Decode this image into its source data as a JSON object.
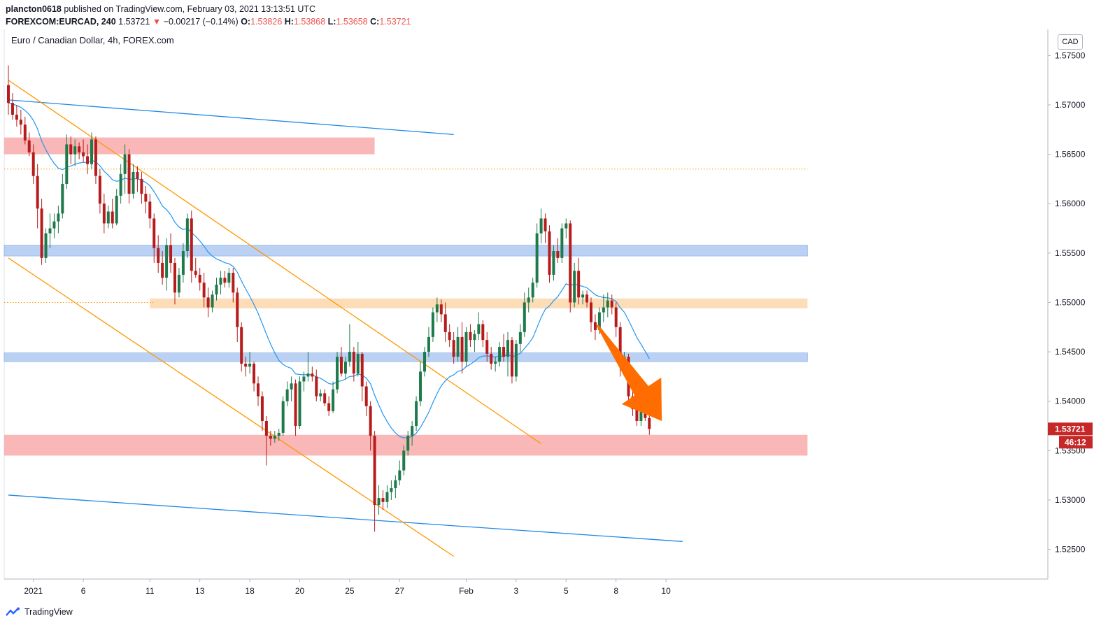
{
  "header": {
    "publisher": "plancton0618",
    "published_text": "published on TradingView.com, February 03, 2021 13:13:51 UTC",
    "symbol": "FOREXCOM:EURCAD, 240",
    "last": "1.53721",
    "change": "−0.00217 (−0.14%)",
    "o_label": "O:",
    "o_val": "1.53826",
    "h_label": "H:",
    "h_val": "1.53868",
    "l_label": "L:",
    "l_val": "1.53658",
    "c_label": "C:",
    "c_val": "1.53721"
  },
  "symbol_title": "Euro / Canadian Dollar, 4h, FOREX.com",
  "currency_label": "CAD",
  "price_label": "1.53721",
  "countdown_label": "46:12",
  "footer": {
    "brand": "TradingView"
  },
  "colors": {
    "up": "#26a69a",
    "down": "#ef5350",
    "candle_up": "#1e7a4a",
    "candle_down": "#b71c1c",
    "ma": "#2196f3",
    "channel_orange": "#ff9800",
    "trend_blue": "#1e88e5",
    "zone_red": "#f8a5a5",
    "zone_blue": "#a9c6f0",
    "zone_orange": "#fcd3a6",
    "arrow": "#ff6d00"
  },
  "chart_data": {
    "type": "candlestick",
    "title": "Euro / Canadian Dollar, 4h, FOREX.com",
    "ylim": [
      1.522,
      1.5775
    ],
    "y_ticks": [
      "1.57500",
      "1.57000",
      "1.56500",
      "1.56000",
      "1.55500",
      "1.55000",
      "1.54500",
      "1.54000",
      "1.53500",
      "1.53000",
      "1.52500"
    ],
    "x_ticks": [
      {
        "label": "2021",
        "bar": 6
      },
      {
        "label": "6",
        "bar": 18
      },
      {
        "label": "11",
        "bar": 34
      },
      {
        "label": "13",
        "bar": 46
      },
      {
        "label": "18",
        "bar": 58
      },
      {
        "label": "20",
        "bar": 70
      },
      {
        "label": "25",
        "bar": 82
      },
      {
        "label": "27",
        "bar": 94
      },
      {
        "label": "Feb",
        "bar": 110
      },
      {
        "label": "3",
        "bar": 122
      },
      {
        "label": "5",
        "bar": 134
      },
      {
        "label": "8",
        "bar": 146
      },
      {
        "label": "10",
        "bar": 158
      }
    ],
    "zones": [
      {
        "name": "resistance-top",
        "color": "zone_red",
        "y1": 1.565,
        "y2": 1.5667,
        "bar_start": 0,
        "bar_end": 88
      },
      {
        "name": "resistance-blue",
        "color": "zone_blue",
        "y1": 1.5547,
        "y2": 1.5558,
        "bar_start": 0,
        "bar_end": 192
      },
      {
        "name": "pivot-orange",
        "color": "zone_orange",
        "y1": 1.5494,
        "y2": 1.5504,
        "bar_start": 35,
        "bar_end": 192
      },
      {
        "name": "support-blue",
        "color": "zone_blue",
        "y1": 1.544,
        "y2": 1.5449,
        "bar_start": 0,
        "bar_end": 192
      },
      {
        "name": "support-red",
        "color": "zone_red",
        "y1": 1.5345,
        "y2": 1.5366,
        "bar_start": 0,
        "bar_end": 192
      }
    ],
    "dotted_levels": [
      {
        "y": 1.5635,
        "bar_start": 0,
        "bar_end": 192,
        "color": "#ff9800"
      },
      {
        "y": 1.55,
        "bar_start": 0,
        "bar_end": 35,
        "color": "#ff9800"
      }
    ],
    "trend_lines": [
      {
        "name": "blue-top",
        "color": "trend_blue",
        "from": [
          0,
          1.5705
        ],
        "to": [
          107,
          1.567
        ]
      },
      {
        "name": "blue-bottom",
        "color": "trend_blue",
        "from": [
          0,
          1.5305
        ],
        "to": [
          162,
          1.5258
        ]
      },
      {
        "name": "orange-upper",
        "color": "channel_orange",
        "from": [
          0,
          1.5725
        ],
        "to": [
          128,
          1.5357
        ]
      },
      {
        "name": "orange-lower",
        "color": "channel_orange",
        "from": [
          0,
          1.5545
        ],
        "to": [
          107,
          1.5243
        ]
      }
    ],
    "arrow": {
      "from": [
        141.5,
        1.5477
      ],
      "to": [
        157,
        1.538
      ]
    },
    "candles": [
      [
        1.572,
        1.574,
        1.569,
        1.5702
      ],
      [
        1.5702,
        1.5712,
        1.5685,
        1.569
      ],
      [
        1.569,
        1.57,
        1.5678,
        1.5685
      ],
      [
        1.5685,
        1.5695,
        1.567,
        1.568
      ],
      [
        1.568,
        1.5688,
        1.566,
        1.5664
      ],
      [
        1.5664,
        1.5672,
        1.5648,
        1.5652
      ],
      [
        1.5652,
        1.566,
        1.562,
        1.5628
      ],
      [
        1.5628,
        1.564,
        1.5575,
        1.5595
      ],
      [
        1.5595,
        1.5605,
        1.5538,
        1.5545
      ],
      [
        1.5545,
        1.5575,
        1.554,
        1.557
      ],
      [
        1.557,
        1.559,
        1.5555,
        1.5575
      ],
      [
        1.5575,
        1.559,
        1.5565,
        1.5582
      ],
      [
        1.5582,
        1.5598,
        1.557,
        1.559
      ],
      [
        1.559,
        1.563,
        1.5585,
        1.562
      ],
      [
        1.562,
        1.567,
        1.5615,
        1.566
      ],
      [
        1.566,
        1.5668,
        1.564,
        1.565
      ],
      [
        1.565,
        1.5665,
        1.5638,
        1.5658
      ],
      [
        1.5658,
        1.5662,
        1.5645,
        1.5652
      ],
      [
        1.5652,
        1.5665,
        1.5642,
        1.5648
      ],
      [
        1.5648,
        1.566,
        1.563,
        1.564
      ],
      [
        1.564,
        1.5672,
        1.5635,
        1.5665
      ],
      [
        1.5665,
        1.5668,
        1.562,
        1.5628
      ],
      [
        1.5628,
        1.5635,
        1.559,
        1.56
      ],
      [
        1.56,
        1.561,
        1.557,
        1.558
      ],
      [
        1.558,
        1.5598,
        1.5575,
        1.5592
      ],
      [
        1.5592,
        1.5605,
        1.5575,
        1.558
      ],
      [
        1.558,
        1.5615,
        1.5578,
        1.5608
      ],
      [
        1.5608,
        1.564,
        1.56,
        1.563
      ],
      [
        1.563,
        1.566,
        1.561,
        1.565
      ],
      [
        1.565,
        1.5655,
        1.56,
        1.561
      ],
      [
        1.561,
        1.564,
        1.5605,
        1.5632
      ],
      [
        1.5632,
        1.5638,
        1.5612,
        1.5625
      ],
      [
        1.5625,
        1.5632,
        1.56,
        1.561
      ],
      [
        1.561,
        1.5618,
        1.559,
        1.5602
      ],
      [
        1.5602,
        1.561,
        1.5575,
        1.5585
      ],
      [
        1.5585,
        1.559,
        1.554,
        1.5555
      ],
      [
        1.5555,
        1.5568,
        1.553,
        1.554
      ],
      [
        1.554,
        1.5552,
        1.5518,
        1.5525
      ],
      [
        1.5525,
        1.5565,
        1.5512,
        1.5558
      ],
      [
        1.5558,
        1.557,
        1.553,
        1.554
      ],
      [
        1.554,
        1.5545,
        1.5498,
        1.551
      ],
      [
        1.551,
        1.5535,
        1.5505,
        1.5528
      ],
      [
        1.5528,
        1.556,
        1.552,
        1.5552
      ],
      [
        1.5552,
        1.559,
        1.5545,
        1.5585
      ],
      [
        1.5585,
        1.5593,
        1.552,
        1.5532
      ],
      [
        1.5532,
        1.5545,
        1.5525,
        1.5528
      ],
      [
        1.5528,
        1.5535,
        1.5512,
        1.552
      ],
      [
        1.552,
        1.553,
        1.5495,
        1.5505
      ],
      [
        1.5505,
        1.5515,
        1.5485,
        1.5495
      ],
      [
        1.5495,
        1.5512,
        1.549,
        1.5508
      ],
      [
        1.5508,
        1.5525,
        1.5502,
        1.5518
      ],
      [
        1.5518,
        1.5532,
        1.5508,
        1.5525
      ],
      [
        1.5525,
        1.5532,
        1.5515,
        1.552
      ],
      [
        1.552,
        1.5535,
        1.5515,
        1.553
      ],
      [
        1.553,
        1.5535,
        1.55,
        1.551
      ],
      [
        1.551,
        1.5515,
        1.546,
        1.5475
      ],
      [
        1.5475,
        1.548,
        1.543,
        1.5438
      ],
      [
        1.5438,
        1.5445,
        1.5425,
        1.5435
      ],
      [
        1.5435,
        1.545,
        1.5428,
        1.5438
      ],
      [
        1.5438,
        1.544,
        1.541,
        1.5418
      ],
      [
        1.5418,
        1.5425,
        1.5395,
        1.5405
      ],
      [
        1.5405,
        1.541,
        1.537,
        1.538
      ],
      [
        1.538,
        1.5385,
        1.5335,
        1.5365
      ],
      [
        1.5365,
        1.537,
        1.5355,
        1.5362
      ],
      [
        1.5362,
        1.537,
        1.5358,
        1.5365
      ],
      [
        1.5365,
        1.5372,
        1.536,
        1.5368
      ],
      [
        1.5368,
        1.5405,
        1.5365,
        1.54
      ],
      [
        1.54,
        1.542,
        1.5395,
        1.5412
      ],
      [
        1.5412,
        1.5425,
        1.54,
        1.5418
      ],
      [
        1.5418,
        1.5422,
        1.5365,
        1.5375
      ],
      [
        1.5375,
        1.5425,
        1.5372,
        1.542
      ],
      [
        1.542,
        1.543,
        1.541,
        1.5425
      ],
      [
        1.5425,
        1.545,
        1.542,
        1.5428
      ],
      [
        1.5428,
        1.5435,
        1.542,
        1.5425
      ],
      [
        1.5425,
        1.5432,
        1.54,
        1.5405
      ],
      [
        1.5405,
        1.5412,
        1.54,
        1.5408
      ],
      [
        1.5408,
        1.5412,
        1.5395,
        1.5398
      ],
      [
        1.5398,
        1.5405,
        1.5385,
        1.539
      ],
      [
        1.539,
        1.542,
        1.5388,
        1.5412
      ],
      [
        1.5412,
        1.545,
        1.5408,
        1.5445
      ],
      [
        1.5445,
        1.5455,
        1.5425,
        1.5428
      ],
      [
        1.5428,
        1.5445,
        1.5422,
        1.544
      ],
      [
        1.544,
        1.5478,
        1.5435,
        1.545
      ],
      [
        1.545,
        1.5455,
        1.542,
        1.5428
      ],
      [
        1.5428,
        1.546,
        1.5425,
        1.5448
      ],
      [
        1.5448,
        1.545,
        1.54,
        1.5415
      ],
      [
        1.5415,
        1.542,
        1.5385,
        1.5395
      ],
      [
        1.5395,
        1.54,
        1.535,
        1.5365
      ],
      [
        1.5365,
        1.537,
        1.5268,
        1.5295
      ],
      [
        1.5295,
        1.5315,
        1.5285,
        1.5302
      ],
      [
        1.5302,
        1.531,
        1.529,
        1.5298
      ],
      [
        1.5298,
        1.5315,
        1.5292,
        1.5308
      ],
      [
        1.5308,
        1.532,
        1.53,
        1.5312
      ],
      [
        1.5312,
        1.5325,
        1.5302,
        1.532
      ],
      [
        1.532,
        1.534,
        1.5315,
        1.533
      ],
      [
        1.533,
        1.5355,
        1.5325,
        1.535
      ],
      [
        1.535,
        1.537,
        1.5345,
        1.5365
      ],
      [
        1.5365,
        1.538,
        1.5355,
        1.5375
      ],
      [
        1.5375,
        1.5405,
        1.537,
        1.54
      ],
      [
        1.54,
        1.544,
        1.5395,
        1.543
      ],
      [
        1.543,
        1.5455,
        1.5425,
        1.545
      ],
      [
        1.545,
        1.5475,
        1.5445,
        1.5465
      ],
      [
        1.5465,
        1.5495,
        1.546,
        1.549
      ],
      [
        1.549,
        1.5505,
        1.548,
        1.5498
      ],
      [
        1.5498,
        1.5503,
        1.548,
        1.5488
      ],
      [
        1.5488,
        1.55,
        1.546,
        1.547
      ],
      [
        1.547,
        1.5478,
        1.5455,
        1.5462
      ],
      [
        1.5462,
        1.547,
        1.5438,
        1.5445
      ],
      [
        1.5445,
        1.5475,
        1.544,
        1.5465
      ],
      [
        1.5465,
        1.548,
        1.5428,
        1.544
      ],
      [
        1.544,
        1.5475,
        1.5435,
        1.547
      ],
      [
        1.547,
        1.5478,
        1.5455,
        1.5462
      ],
      [
        1.5462,
        1.5472,
        1.545,
        1.5468
      ],
      [
        1.5468,
        1.549,
        1.5462,
        1.5478
      ],
      [
        1.5478,
        1.5482,
        1.5455,
        1.5462
      ],
      [
        1.5462,
        1.547,
        1.544,
        1.5448
      ],
      [
        1.5448,
        1.5455,
        1.5432,
        1.5438
      ],
      [
        1.5438,
        1.5445,
        1.543,
        1.544
      ],
      [
        1.544,
        1.546,
        1.5435,
        1.5455
      ],
      [
        1.5455,
        1.5468,
        1.544,
        1.5445
      ],
      [
        1.5445,
        1.547,
        1.5425,
        1.5462
      ],
      [
        1.5462,
        1.5465,
        1.5418,
        1.5425
      ],
      [
        1.5425,
        1.5462,
        1.542,
        1.5458
      ],
      [
        1.5458,
        1.5478,
        1.545,
        1.547
      ],
      [
        1.547,
        1.551,
        1.5465,
        1.55
      ],
      [
        1.55,
        1.5515,
        1.549,
        1.5505
      ],
      [
        1.5505,
        1.5525,
        1.55,
        1.552
      ],
      [
        1.552,
        1.558,
        1.5515,
        1.557
      ],
      [
        1.557,
        1.5595,
        1.556,
        1.5585
      ],
      [
        1.5585,
        1.559,
        1.556,
        1.5572
      ],
      [
        1.5572,
        1.5578,
        1.552,
        1.5528
      ],
      [
        1.5528,
        1.5558,
        1.5522,
        1.5552
      ],
      [
        1.5552,
        1.5565,
        1.554,
        1.5545
      ],
      [
        1.5545,
        1.558,
        1.554,
        1.5575
      ],
      [
        1.5575,
        1.5585,
        1.5565,
        1.558
      ],
      [
        1.558,
        1.5583,
        1.549,
        1.55
      ],
      [
        1.55,
        1.554,
        1.5495,
        1.5532
      ],
      [
        1.5532,
        1.5545,
        1.5498,
        1.5505
      ],
      [
        1.5505,
        1.5512,
        1.5498,
        1.5508
      ],
      [
        1.5508,
        1.5512,
        1.5495,
        1.55
      ],
      [
        1.55,
        1.5505,
        1.547,
        1.548
      ],
      [
        1.548,
        1.5488,
        1.5462,
        1.5472
      ],
      [
        1.5472,
        1.5495,
        1.5468,
        1.549
      ],
      [
        1.549,
        1.5508,
        1.548,
        1.5495
      ],
      [
        1.5495,
        1.551,
        1.5485,
        1.5502
      ],
      [
        1.5502,
        1.5508,
        1.5488,
        1.5495
      ],
      [
        1.5495,
        1.55,
        1.5465,
        1.5475
      ],
      [
        1.5475,
        1.548,
        1.5425,
        1.5435
      ],
      [
        1.5435,
        1.545,
        1.5428,
        1.5445
      ],
      [
        1.5445,
        1.5448,
        1.5398,
        1.5405
      ],
      [
        1.5405,
        1.541,
        1.5385,
        1.5392
      ],
      [
        1.5392,
        1.5398,
        1.5375,
        1.538
      ],
      [
        1.538,
        1.5395,
        1.5375,
        1.5393
      ],
      [
        1.5393,
        1.5396,
        1.538,
        1.5383
      ],
      [
        1.5383,
        1.5387,
        1.5366,
        1.5372
      ]
    ]
  }
}
